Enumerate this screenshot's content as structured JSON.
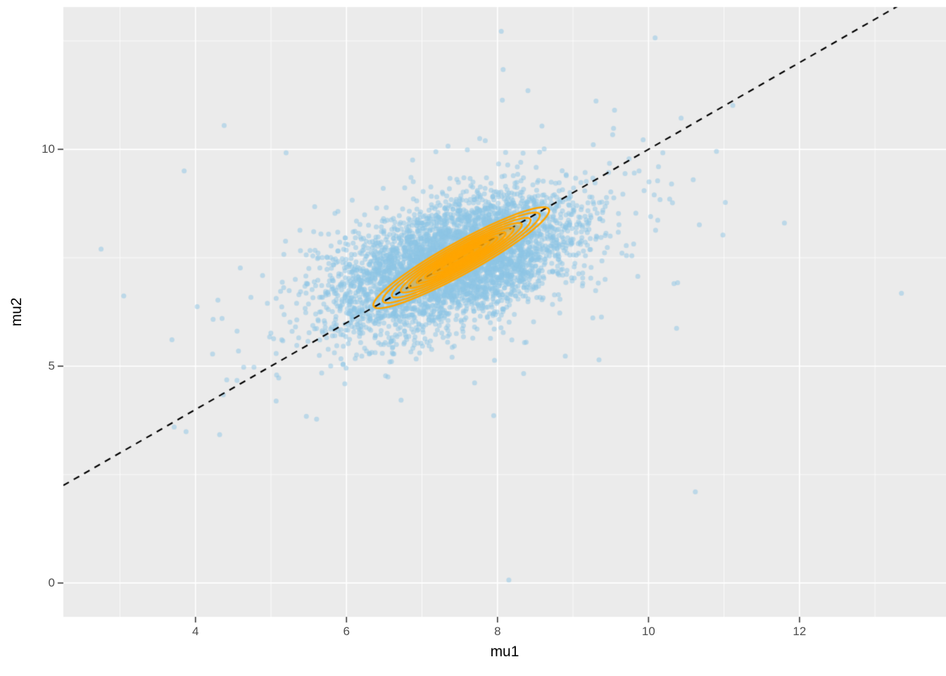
{
  "figure": {
    "bg_color": "#FFFFFF",
    "panel_bg": "#EBEBEB",
    "grid_color": "#FFFFFF",
    "tick_label_color": "#4D4D4D"
  },
  "chart_data": {
    "type": "scatter",
    "title": "",
    "xlabel": "mu1",
    "ylabel": "mu2",
    "xlim": [
      2.25,
      13.94
    ],
    "ylim": [
      -0.78,
      13.28
    ],
    "x_ticks": [
      4,
      6,
      8,
      10,
      12
    ],
    "y_ticks": [
      0,
      5,
      10
    ],
    "x_minor_ticks": [
      3,
      5,
      7,
      9,
      11,
      13
    ],
    "y_minor_ticks": [
      2.5,
      7.5,
      12.5
    ],
    "grid": "major+minor",
    "legend": "none",
    "panel_bg": "#EBEBEB",
    "series": [
      {
        "name": "posterior draws (mu1 vs mu2)",
        "type": "points",
        "n": 4600,
        "mean": [
          7.42,
          7.4
        ],
        "sd": [
          0.8,
          0.78
        ],
        "correlation": 0.5,
        "tail_fraction": 0.05,
        "tail_scale": 1.9,
        "seed": 20240613,
        "color": "#8EC6E6",
        "alpha": 0.5,
        "radius": 3.5,
        "outliers": [
          [
            8.05,
            12.72
          ],
          [
            4.38,
            10.55
          ],
          [
            9.55,
            10.9
          ],
          [
            5.2,
            9.92
          ],
          [
            3.85,
            9.5
          ],
          [
            10.9,
            9.95
          ],
          [
            2.75,
            7.7
          ],
          [
            3.05,
            6.62
          ],
          [
            13.35,
            6.68
          ],
          [
            11.8,
            8.3
          ],
          [
            4.32,
            3.42
          ],
          [
            7.95,
            3.86
          ],
          [
            10.62,
            2.1
          ],
          [
            8.15,
            0.07
          ]
        ]
      },
      {
        "name": "2d density contours",
        "type": "contour-ellipses",
        "center": [
          7.52,
          7.5
        ],
        "angle_deg": 45,
        "levels": [
          {
            "a": 1.62,
            "b": 0.3
          },
          {
            "a": 1.45,
            "b": 0.26
          },
          {
            "a": 1.28,
            "b": 0.225
          },
          {
            "a": 1.12,
            "b": 0.192
          },
          {
            "a": 0.97,
            "b": 0.162
          },
          {
            "a": 0.82,
            "b": 0.133
          },
          {
            "a": 0.67,
            "b": 0.106
          },
          {
            "a": 0.52,
            "b": 0.08
          },
          {
            "a": 0.37,
            "b": 0.055
          },
          {
            "a": 0.22,
            "b": 0.032
          }
        ],
        "color": "#FFA500",
        "fill_color_rgba": "rgba(255,165,0,0.3)",
        "line_width": 2.6
      },
      {
        "name": "identity line y = x",
        "type": "abline",
        "slope": 1,
        "intercept": 0,
        "dash": [
          9,
          8
        ],
        "color": "#000000",
        "line_width": 2.2
      }
    ]
  }
}
